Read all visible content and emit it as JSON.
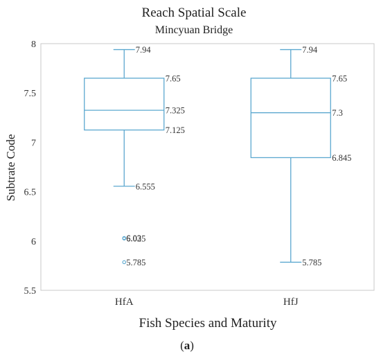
{
  "chart_data": {
    "type": "box",
    "title": "Reach Spatial Scale",
    "subtitle": "Mincyuan Bridge",
    "xlabel": "Fish Species  and  Maturity",
    "ylabel": "Subtrate Code",
    "ylim": [
      5.5,
      8
    ],
    "yticks": [
      5.5,
      6,
      6.5,
      7,
      7.5,
      8
    ],
    "ytick_labels": [
      "5.5",
      "6",
      "6.5",
      "7",
      "7.5",
      "8"
    ],
    "grid": false,
    "color": "#5ba8cf",
    "categories": [
      "HfA",
      "HfJ"
    ],
    "boxes": [
      {
        "category": "HfA",
        "whisker_high": 7.94,
        "q3": 7.65,
        "median": 7.325,
        "q1": 7.125,
        "whisker_low": 6.555,
        "labels": {
          "whisker_high": "7.94",
          "q3": "7.65",
          "median": "7.325",
          "q1": "7.125",
          "whisker_low": "6.555"
        },
        "outliers": [
          {
            "value": 6.03,
            "label": "6.03"
          },
          {
            "value": 6.025,
            "label": "6.025"
          },
          {
            "value": 5.785,
            "label": "5.785"
          }
        ]
      },
      {
        "category": "HfJ",
        "whisker_high": 7.94,
        "q3": 7.65,
        "median": 7.3,
        "q1": 6.845,
        "whisker_low": 5.785,
        "labels": {
          "whisker_high": "7.94",
          "q3": "7.65",
          "median": "7.3",
          "q1": "6.845",
          "whisker_low": "5.785"
        },
        "outliers": []
      }
    ]
  },
  "caption": {
    "prefix": "(",
    "letter": "a",
    "suffix": ")"
  }
}
